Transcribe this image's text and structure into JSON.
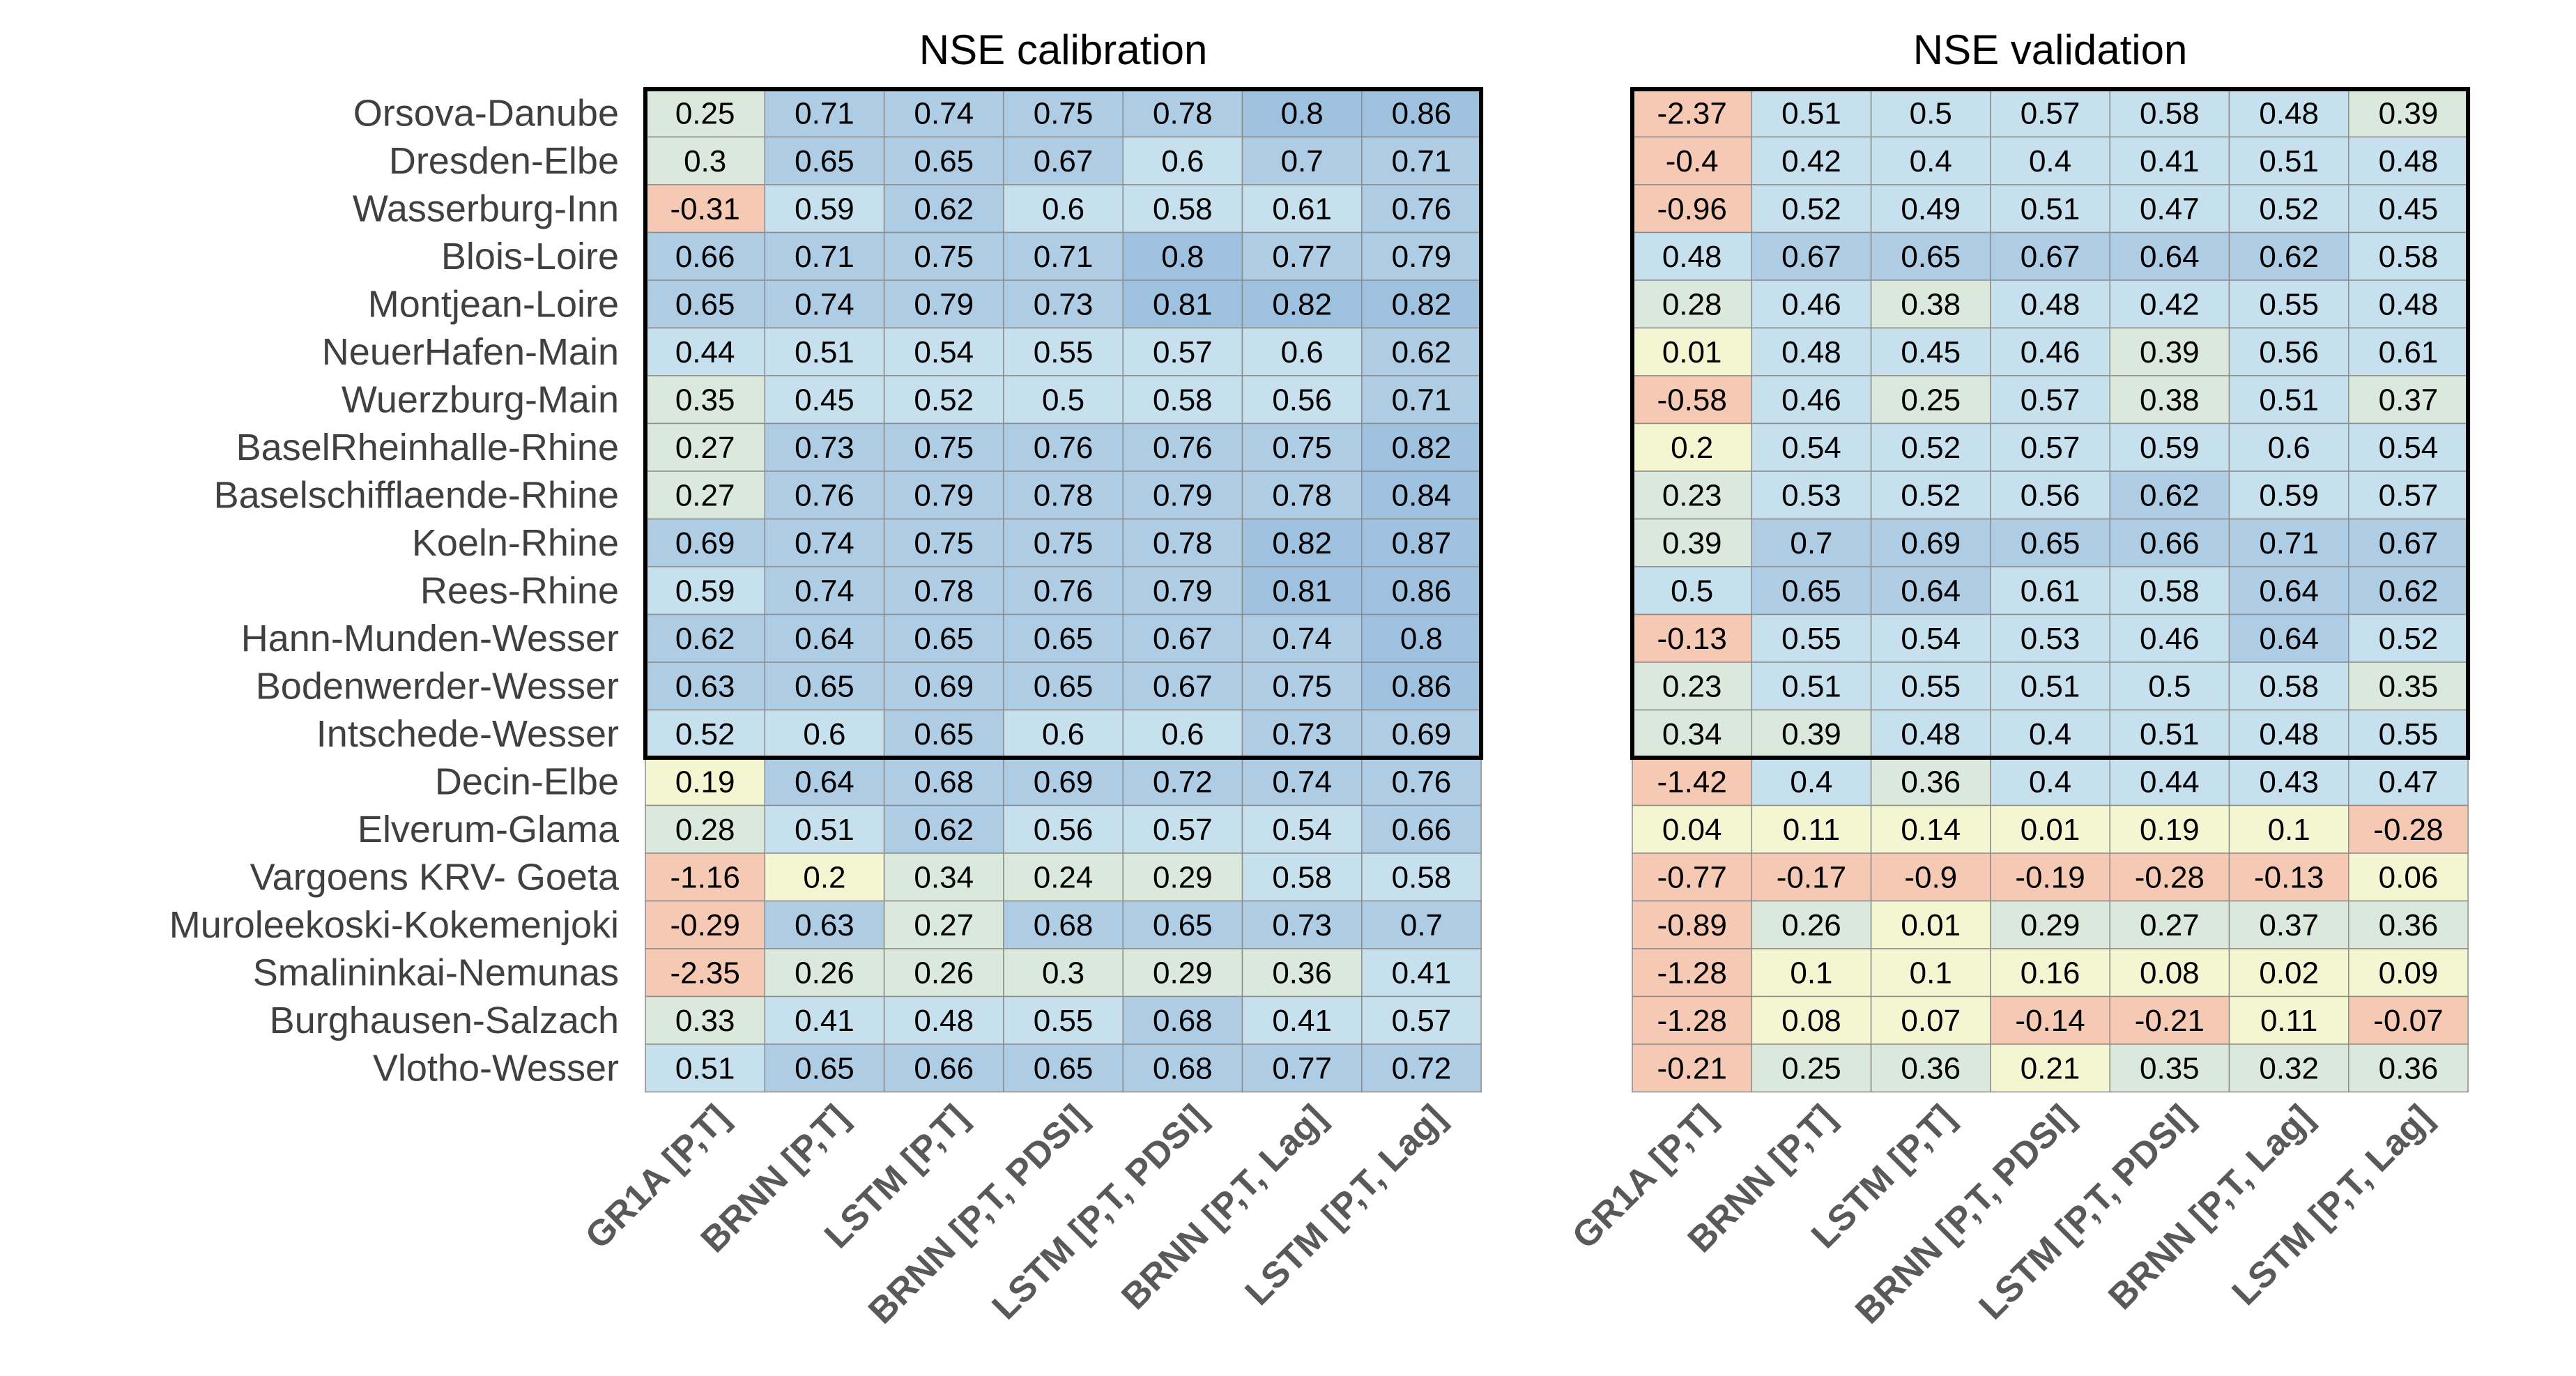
{
  "chart_data": [
    {
      "type": "heatmap",
      "title": "NSE calibration",
      "rows": [
        "Orsova-Danube",
        "Dresden-Elbe",
        "Wasserburg-Inn",
        "Blois-Loire",
        "Montjean-Loire",
        "NeuerHafen-Main",
        "Wuerzburg-Main",
        "BaselRheinhalle-Rhine",
        "Baselschifflaende-Rhine",
        "Koeln-Rhine",
        "Rees-Rhine",
        "Hann-Munden-Wesser",
        "Bodenwerder-Wesser",
        "Intschede-Wesser",
        "Decin-Elbe",
        "Elverum-Glama",
        "Vargoens KRV- Goeta",
        "Muroleekoski-Kokemenjoki",
        "Smalininkai-Nemunas",
        "Burghausen-Salzach",
        "Vlotho-Wesser"
      ],
      "columns": [
        "GR1A [P,T]",
        "BRNN [P,T]",
        "LSTM [P,T]",
        "BRNN [P,T, PDSI]",
        "LSTM [P,T, PDSI]",
        "BRNN [P,T, Lag]",
        "LSTM [P,T, Lag]"
      ],
      "values": [
        [
          "0.25",
          "0.71",
          "0.74",
          "0.75",
          "0.78",
          "0.8",
          "0.86"
        ],
        [
          "0.3",
          "0.65",
          "0.65",
          "0.67",
          "0.6",
          "0.7",
          "0.71"
        ],
        [
          "-0.31",
          "0.59",
          "0.62",
          "0.6",
          "0.58",
          "0.61",
          "0.76"
        ],
        [
          "0.66",
          "0.71",
          "0.75",
          "0.71",
          "0.8",
          "0.77",
          "0.79"
        ],
        [
          "0.65",
          "0.74",
          "0.79",
          "0.73",
          "0.81",
          "0.82",
          "0.82"
        ],
        [
          "0.44",
          "0.51",
          "0.54",
          "0.55",
          "0.57",
          "0.6",
          "0.62"
        ],
        [
          "0.35",
          "0.45",
          "0.52",
          "0.5",
          "0.58",
          "0.56",
          "0.71"
        ],
        [
          "0.27",
          "0.73",
          "0.75",
          "0.76",
          "0.76",
          "0.75",
          "0.82"
        ],
        [
          "0.27",
          "0.76",
          "0.79",
          "0.78",
          "0.79",
          "0.78",
          "0.84"
        ],
        [
          "0.69",
          "0.74",
          "0.75",
          "0.75",
          "0.78",
          "0.82",
          "0.87"
        ],
        [
          "0.59",
          "0.74",
          "0.78",
          "0.76",
          "0.79",
          "0.81",
          "0.86"
        ],
        [
          "0.62",
          "0.64",
          "0.65",
          "0.65",
          "0.67",
          "0.74",
          "0.8"
        ],
        [
          "0.63",
          "0.65",
          "0.69",
          "0.65",
          "0.67",
          "0.75",
          "0.86"
        ],
        [
          "0.52",
          "0.6",
          "0.65",
          "0.6",
          "0.6",
          "0.73",
          "0.69"
        ],
        [
          "0.19",
          "0.64",
          "0.68",
          "0.69",
          "0.72",
          "0.74",
          "0.76"
        ],
        [
          "0.28",
          "0.51",
          "0.62",
          "0.56",
          "0.57",
          "0.54",
          "0.66"
        ],
        [
          "-1.16",
          "0.2",
          "0.34",
          "0.24",
          "0.29",
          "0.58",
          "0.58"
        ],
        [
          "-0.29",
          "0.63",
          "0.27",
          "0.68",
          "0.65",
          "0.73",
          "0.7"
        ],
        [
          "-2.35",
          "0.26",
          "0.26",
          "0.3",
          "0.29",
          "0.36",
          "0.41"
        ],
        [
          "0.33",
          "0.41",
          "0.48",
          "0.55",
          "0.68",
          "0.41",
          "0.57"
        ],
        [
          "0.51",
          "0.65",
          "0.66",
          "0.65",
          "0.68",
          "0.77",
          "0.72"
        ]
      ],
      "highlight_rows": 14
    },
    {
      "type": "heatmap",
      "title": "NSE validation",
      "columns": [
        "GR1A [P,T]",
        "BRNN [P,T]",
        "LSTM [P,T]",
        "BRNN [P,T, PDSI]",
        "LSTM [P,T, PDSI]",
        "BRNN [P,T, Lag]",
        "LSTM [P,T, Lag]"
      ],
      "values": [
        [
          "-2.37",
          "0.51",
          "0.5",
          "0.57",
          "0.58",
          "0.48",
          "0.39"
        ],
        [
          "-0.4",
          "0.42",
          "0.4",
          "0.4",
          "0.41",
          "0.51",
          "0.48"
        ],
        [
          "-0.96",
          "0.52",
          "0.49",
          "0.51",
          "0.47",
          "0.52",
          "0.45"
        ],
        [
          "0.48",
          "0.67",
          "0.65",
          "0.67",
          "0.64",
          "0.62",
          "0.58"
        ],
        [
          "0.28",
          "0.46",
          "0.38",
          "0.48",
          "0.42",
          "0.55",
          "0.48"
        ],
        [
          "0.01",
          "0.48",
          "0.45",
          "0.46",
          "0.39",
          "0.56",
          "0.61"
        ],
        [
          "-0.58",
          "0.46",
          "0.25",
          "0.57",
          "0.38",
          "0.51",
          "0.37"
        ],
        [
          "0.2",
          "0.54",
          "0.52",
          "0.57",
          "0.59",
          "0.6",
          "0.54"
        ],
        [
          "0.23",
          "0.53",
          "0.52",
          "0.56",
          "0.62",
          "0.59",
          "0.57"
        ],
        [
          "0.39",
          "0.7",
          "0.69",
          "0.65",
          "0.66",
          "0.71",
          "0.67"
        ],
        [
          "0.5",
          "0.65",
          "0.64",
          "0.61",
          "0.58",
          "0.64",
          "0.62"
        ],
        [
          "-0.13",
          "0.55",
          "0.54",
          "0.53",
          "0.46",
          "0.64",
          "0.52"
        ],
        [
          "0.23",
          "0.51",
          "0.55",
          "0.51",
          "0.5",
          "0.58",
          "0.35"
        ],
        [
          "0.34",
          "0.39",
          "0.48",
          "0.4",
          "0.51",
          "0.48",
          "0.55"
        ],
        [
          "-1.42",
          "0.4",
          "0.36",
          "0.4",
          "0.44",
          "0.43",
          "0.47"
        ],
        [
          "0.04",
          "0.11",
          "0.14",
          "0.01",
          "0.19",
          "0.1",
          "-0.28"
        ],
        [
          "-0.77",
          "-0.17",
          "-0.9",
          "-0.19",
          "-0.28",
          "-0.13",
          "0.06"
        ],
        [
          "-0.89",
          "0.26",
          "0.01",
          "0.29",
          "0.27",
          "0.37",
          "0.36"
        ],
        [
          "-1.28",
          "0.1",
          "0.1",
          "0.16",
          "0.08",
          "0.02",
          "0.09"
        ],
        [
          "-1.28",
          "0.08",
          "0.07",
          "-0.14",
          "-0.21",
          "0.11",
          "-0.07"
        ],
        [
          "-0.21",
          "0.25",
          "0.36",
          "0.21",
          "0.35",
          "0.32",
          "0.36"
        ]
      ],
      "highlight_rows": 14
    }
  ],
  "colors": {
    "negative": "#f6c9b4",
    "near_zero": "#f4f6d2",
    "low": "#dbe9dc",
    "mid": "#c6e0ee",
    "high": "#aecce4",
    "highest": "#9ec1df",
    "grid": "#8c8c8c",
    "frame": "#000000"
  }
}
